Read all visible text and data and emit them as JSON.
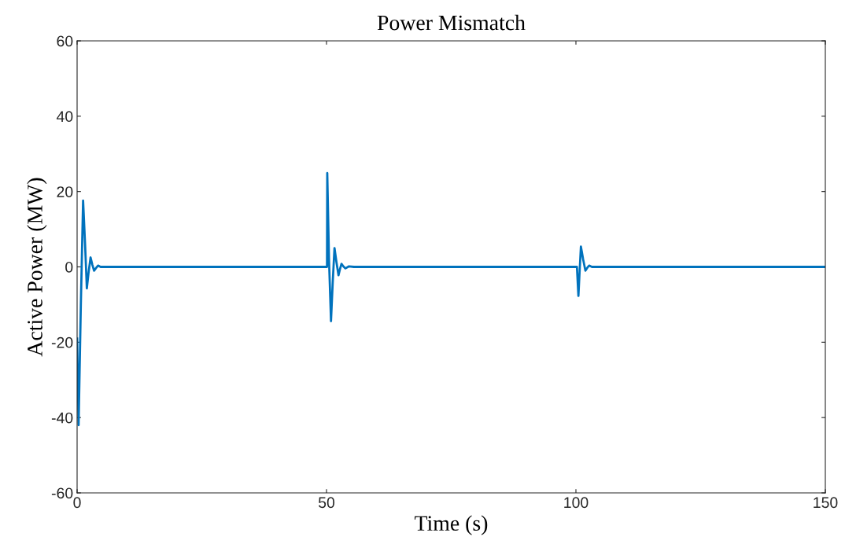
{
  "chart_data": {
    "type": "line",
    "title": "Power Mismatch",
    "xlabel": "Time (s)",
    "ylabel": "Active Power (MW)",
    "series": [
      {
        "color": "#0072bd",
        "x": [
          0,
          0.3,
          0.75,
          1.2,
          1.6,
          1.95,
          2.3,
          2.7,
          3.05,
          3.4,
          3.8,
          4.2,
          4.7,
          5.5,
          6,
          50,
          50.1,
          50.15,
          50.5,
          50.9,
          51.25,
          51.6,
          52.0,
          52.4,
          52.7,
          53.0,
          53.4,
          53.8,
          54.5,
          55.5,
          56,
          100,
          100.2,
          100.5,
          100.75,
          101.0,
          101.45,
          101.9,
          102.3,
          102.65,
          103.2,
          104,
          150
        ],
        "values": [
          -19,
          -42,
          -10,
          17.6,
          6,
          -5.7,
          -1.5,
          2.5,
          0.6,
          -1.0,
          -0.3,
          0.35,
          0,
          0,
          0,
          0,
          0,
          24.9,
          2,
          -14.4,
          -4,
          5.0,
          1.2,
          -2.2,
          -0.6,
          0.8,
          0.1,
          -0.4,
          0.15,
          0,
          0,
          0,
          0,
          -7.7,
          -1,
          5.4,
          2,
          -1.0,
          -0.2,
          0.35,
          0,
          0,
          0
        ]
      }
    ],
    "xlim": [
      0,
      150
    ],
    "ylim": [
      -60,
      60
    ],
    "xticks": [
      0,
      50,
      100,
      150
    ],
    "yticks": [
      -60,
      -40,
      -20,
      0,
      20,
      40,
      60
    ],
    "grid": false,
    "legend": false,
    "marker": "none",
    "line_style": "solid"
  }
}
